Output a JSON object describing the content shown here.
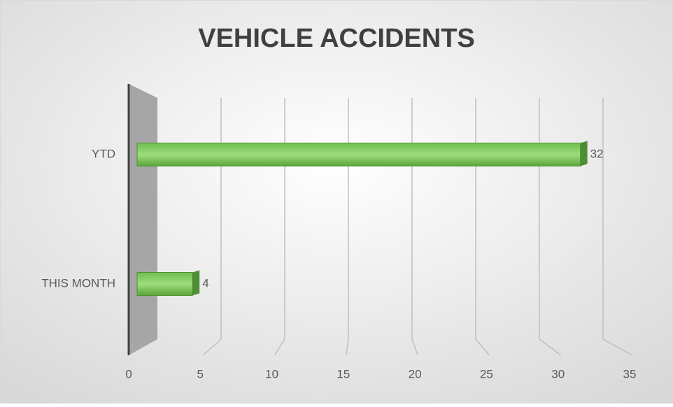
{
  "chart_data": {
    "type": "bar",
    "orientation": "horizontal",
    "title": "VEHICLE ACCIDENTS",
    "categories": [
      "YTD",
      "THIS MONTH"
    ],
    "values": [
      32,
      4
    ],
    "color": "#7dc95e",
    "xlim": [
      0,
      35
    ],
    "xticks": [
      0,
      5,
      10,
      15,
      20,
      25,
      30,
      35
    ],
    "grid": true
  }
}
